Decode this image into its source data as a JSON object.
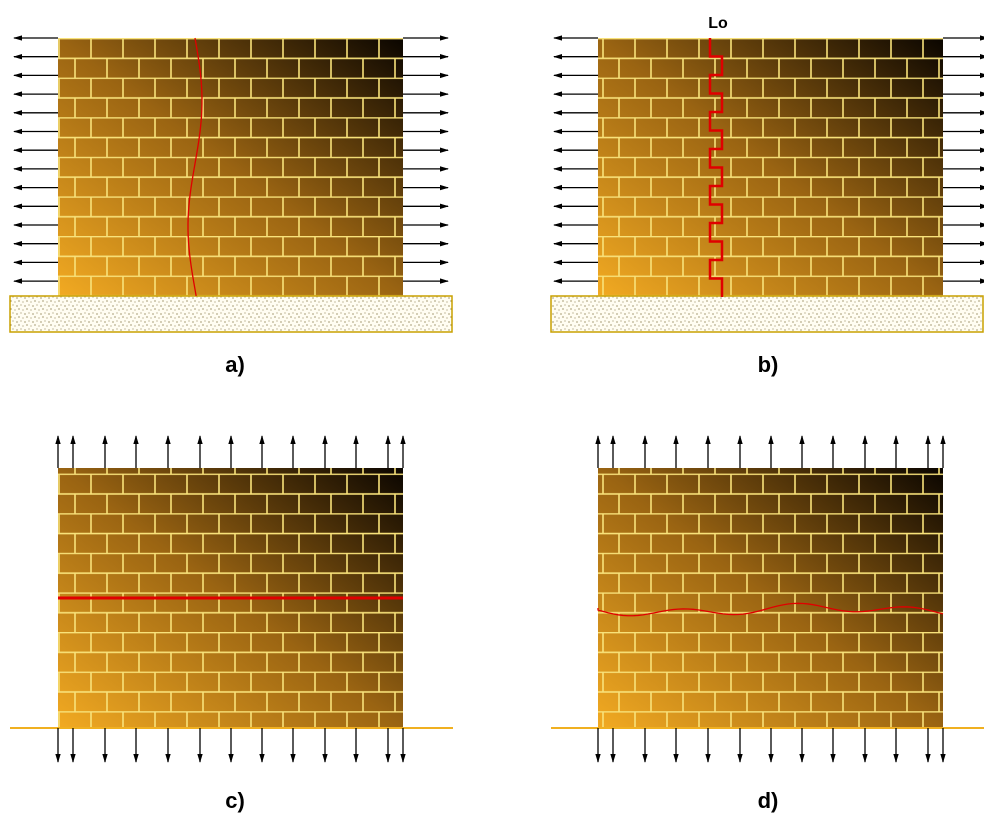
{
  "panels": [
    {
      "label": "a)"
    },
    {
      "label": "b)",
      "annotation": "Lo"
    },
    {
      "label": "c)"
    },
    {
      "label": "d)"
    }
  ]
}
